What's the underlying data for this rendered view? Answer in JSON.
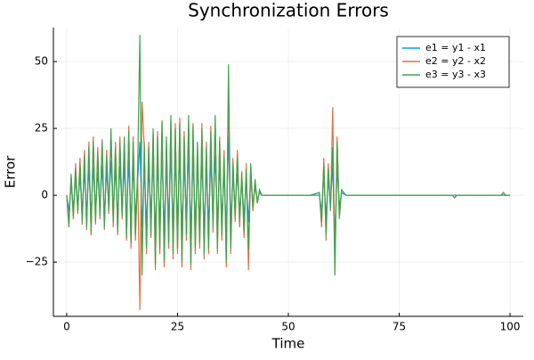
{
  "chart_data": {
    "type": "line",
    "title": "Synchronization Errors",
    "x_label": "Time",
    "y_label": "Error",
    "x": [
      0,
      0.5,
      1,
      1.5,
      2,
      2.5,
      3,
      3.5,
      4,
      4.5,
      5,
      5.5,
      6,
      6.5,
      7,
      7.5,
      8,
      8.5,
      9,
      9.5,
      10,
      10.5,
      11,
      11.5,
      12,
      12.5,
      13,
      13.5,
      14,
      14.5,
      15,
      15.5,
      16,
      16.5,
      17,
      17.5,
      18,
      18.5,
      19,
      19.5,
      20,
      20.5,
      21,
      21.5,
      22,
      22.5,
      23,
      23.5,
      24,
      24.5,
      25,
      25.5,
      26,
      26.5,
      27,
      27.5,
      28,
      28.5,
      29,
      29.5,
      30,
      30.5,
      31,
      31.5,
      32,
      32.5,
      33,
      33.5,
      34,
      34.5,
      35,
      35.5,
      36,
      36.5,
      37,
      37.5,
      38,
      38.5,
      39,
      39.5,
      40,
      40.5,
      41,
      41.5,
      42,
      42.5,
      43,
      43.5,
      44,
      45,
      50,
      55,
      57,
      57.5,
      58,
      58.5,
      59,
      59.5,
      60,
      60.5,
      61,
      61.5,
      62,
      63,
      65,
      70,
      75,
      80,
      85,
      87,
      87.5,
      88,
      90,
      95,
      98,
      98.5,
      99,
      100
    ],
    "series": [
      {
        "name": "e1 = y1 - x1",
        "color": "#009af9",
        "values": [
          0,
          -6,
          4,
          -5,
          6,
          -4,
          7,
          -6,
          9,
          -7,
          10,
          -8,
          11,
          -6,
          9,
          -5,
          11,
          -7,
          9,
          -4,
          13,
          -6,
          10,
          -8,
          11,
          -5,
          11,
          -9,
          13,
          -10,
          11,
          -8,
          5,
          20,
          -12,
          10,
          -11,
          10,
          -8,
          13,
          -14,
          12,
          -11,
          15,
          -13,
          12,
          -10,
          16,
          -12,
          14,
          -11,
          15,
          -13,
          12,
          -8,
          16,
          -14,
          14,
          -11,
          11,
          -10,
          13,
          -12,
          10,
          -11,
          13,
          -7,
          15,
          -11,
          11,
          -8,
          8,
          -13,
          22,
          -11,
          7,
          -4,
          8,
          -6,
          5,
          -8,
          6,
          -10,
          6,
          -3,
          3,
          -2,
          1,
          0,
          0,
          0,
          0,
          0,
          -6,
          7,
          -8,
          6,
          -3,
          11,
          -16,
          10,
          -4,
          1,
          0,
          0,
          0,
          0,
          0,
          0,
          0,
          0,
          0,
          0,
          0,
          0,
          0,
          0,
          0
        ]
      },
      {
        "name": "e2 = y2 - x2",
        "color": "#e26f46",
        "values": [
          0,
          -10,
          7,
          -9,
          12,
          -7,
          14,
          -11,
          17,
          -13,
          20,
          -15,
          22,
          -11,
          18,
          -9,
          21,
          -13,
          17,
          -7,
          23,
          -12,
          20,
          -15,
          22,
          -9,
          20,
          -17,
          26,
          -20,
          22,
          -17,
          8,
          -43,
          35,
          18,
          -22,
          20,
          -16,
          23,
          -28,
          24,
          -22,
          27,
          -27,
          20,
          -20,
          28,
          -24,
          27,
          -22,
          29,
          -27,
          24,
          -17,
          28,
          -28,
          27,
          -22,
          18,
          -20,
          27,
          -24,
          20,
          -22,
          26,
          -14,
          28,
          -22,
          22,
          -17,
          17,
          -27,
          40,
          -22,
          14,
          -10,
          17,
          -12,
          9,
          -16,
          12,
          -28,
          10,
          -6,
          5,
          -3,
          2,
          0,
          0,
          0,
          0,
          1,
          -12,
          14,
          -17,
          12,
          -6,
          33,
          -28,
          22,
          -9,
          2,
          0,
          0,
          0,
          0,
          0,
          0,
          0,
          -1,
          0,
          0,
          0,
          0,
          1,
          0,
          0
        ]
      },
      {
        "name": "e3 = y3 - x3",
        "color": "#3ea44e",
        "values": [
          0,
          -12,
          8,
          -8,
          10,
          -6,
          12,
          -10,
          15,
          -12,
          18,
          -14,
          20,
          -10,
          16,
          -8,
          20,
          -12,
          15,
          -6,
          25,
          -10,
          18,
          -14,
          20,
          -8,
          22,
          -16,
          24,
          -18,
          20,
          -15,
          10,
          60,
          -30,
          20,
          -20,
          18,
          -15,
          25,
          -26,
          22,
          -20,
          28,
          -25,
          22,
          -18,
          30,
          -22,
          25,
          -20,
          27,
          -25,
          22,
          -15,
          30,
          -26,
          26,
          -20,
          20,
          -18,
          25,
          -22,
          18,
          -20,
          24,
          -12,
          30,
          -20,
          20,
          -15,
          15,
          -25,
          49,
          -20,
          12,
          -8,
          15,
          -10,
          8,
          -14,
          10,
          -20,
          12,
          -5,
          6,
          -3,
          2,
          0,
          0,
          0,
          0,
          1,
          -10,
          12,
          -15,
          10,
          -5,
          18,
          -30,
          20,
          -8,
          2,
          0,
          0,
          0,
          0,
          0,
          0,
          0,
          -1,
          0,
          0,
          0,
          0,
          1,
          0,
          0
        ]
      }
    ],
    "xlim": [
      -3,
      103
    ],
    "xticks": [
      0,
      25,
      50,
      75,
      100
    ],
    "ylim": [
      -45.3,
      62.7
    ],
    "yticks": [
      {
        "value": -25,
        "label": "−25"
      },
      0,
      25,
      50
    ],
    "grid": true,
    "legend": "top-right"
  }
}
